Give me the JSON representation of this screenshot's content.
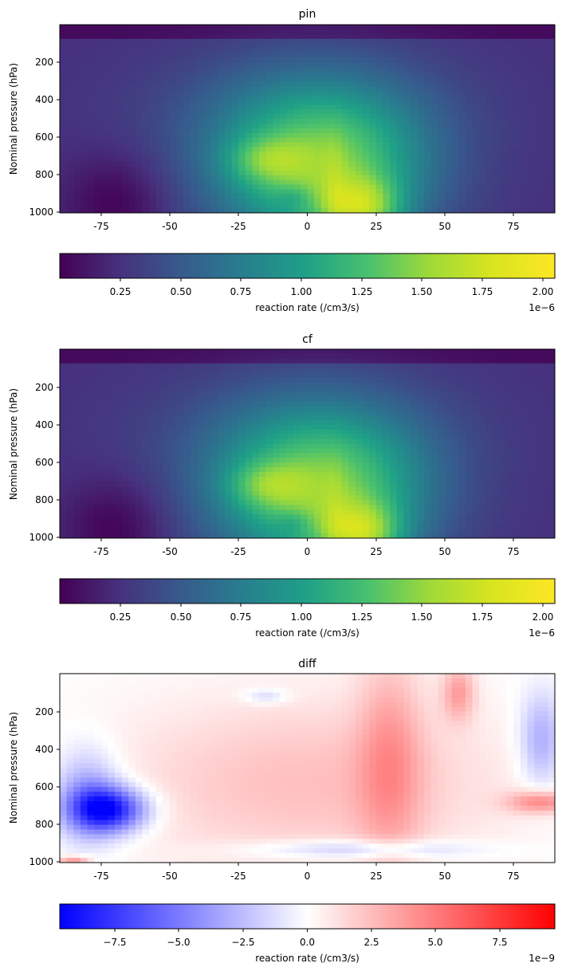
{
  "chart_data": [
    {
      "type": "heatmap",
      "title": "pin",
      "xlabel": "",
      "ylabel": "Nominal pressure (hPa)",
      "xlim": [
        -90,
        90
      ],
      "ylim": [
        1000,
        10
      ],
      "xticks": [
        -75,
        -50,
        -25,
        0,
        25,
        50,
        75
      ],
      "yticks": [
        200,
        400,
        600,
        800,
        1000
      ],
      "colormap": "viridis",
      "colorbar": {
        "label": "reaction rate (/cm3/s)",
        "range": [
          1e-08,
          2.05e-06
        ],
        "ticks": [
          "0.25",
          "0.50",
          "0.75",
          "1.00",
          "1.25",
          "1.50",
          "1.75",
          "2.00"
        ],
        "tick_values": [
          0.25,
          0.5,
          0.75,
          1.0,
          1.25,
          1.5,
          1.75,
          2.0
        ],
        "scale_factor": 1e-06,
        "offset_text": "1e−6"
      }
    },
    {
      "type": "heatmap",
      "title": "cf",
      "xlabel": "",
      "ylabel": "Nominal pressure (hPa)",
      "xlim": [
        -90,
        90
      ],
      "ylim": [
        1000,
        10
      ],
      "xticks": [
        -75,
        -50,
        -25,
        0,
        25,
        50,
        75
      ],
      "yticks": [
        200,
        400,
        600,
        800,
        1000
      ],
      "colormap": "viridis",
      "colorbar": {
        "label": "reaction rate (/cm3/s)",
        "range": [
          1e-08,
          2.05e-06
        ],
        "ticks": [
          "0.25",
          "0.50",
          "0.75",
          "1.00",
          "1.25",
          "1.50",
          "1.75",
          "2.00"
        ],
        "tick_values": [
          0.25,
          0.5,
          0.75,
          1.0,
          1.25,
          1.5,
          1.75,
          2.0
        ],
        "scale_factor": 1e-06,
        "offset_text": "1e−6"
      }
    },
    {
      "type": "heatmap",
      "title": "diff",
      "xlabel": "",
      "ylabel": "Nominal pressure (hPa)",
      "xlim": [
        -90,
        90
      ],
      "ylim": [
        1000,
        10
      ],
      "xticks": [
        -75,
        -50,
        -25,
        0,
        25,
        50,
        75
      ],
      "yticks": [
        200,
        400,
        600,
        800,
        1000
      ],
      "colormap": "bwr",
      "colorbar": {
        "label": "reaction rate (/cm3/s)",
        "range": [
          -9.7e-09,
          9.7e-09
        ],
        "ticks": [
          "−7.5",
          "−5.0",
          "−2.5",
          "0.0",
          "2.5",
          "5.0",
          "7.5"
        ],
        "tick_values": [
          -7.5,
          -5.0,
          -2.5,
          0.0,
          2.5,
          5.0,
          7.5
        ],
        "scale_factor": 1e-09,
        "offset_text": "1e−9"
      }
    }
  ]
}
